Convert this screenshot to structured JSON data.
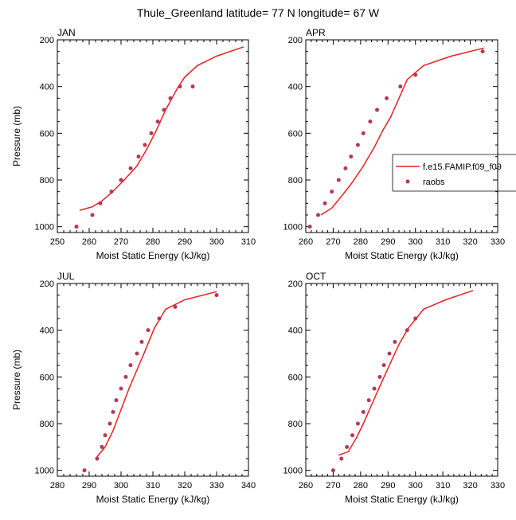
{
  "title": "Thule_Greenland  latitude= 77 N longitude= 67 W",
  "colors": {
    "model": "#e8201f",
    "obs": "#b5365f",
    "axis": "#000000"
  },
  "legend": {
    "placement": "right-middle",
    "model_label": "f.e15.FAMIP.f09_f09",
    "obs_label": "raobs"
  },
  "chart_data": [
    {
      "type": "line",
      "panel_label": "JAN",
      "xlabel": "Moist Static Energy (kJ/kg)",
      "ylabel": "Pressure (mb)",
      "xlim": [
        250,
        310
      ],
      "xticks": [
        250,
        260,
        270,
        280,
        290,
        300,
        310
      ],
      "ylim": [
        1025,
        200
      ],
      "yticks": [
        200,
        400,
        600,
        800,
        1000
      ],
      "series": [
        {
          "values": [
            [
              257.0,
              930
            ],
            [
              261.0,
              915
            ],
            [
              264.0,
              890
            ],
            [
              267.0,
              855
            ],
            [
              271.0,
              800
            ],
            [
              275.0,
              740
            ],
            [
              278.0,
              670
            ],
            [
              281.0,
              590
            ],
            [
              284.0,
              500
            ],
            [
              288.0,
              400
            ],
            [
              290.0,
              360
            ],
            [
              294.0,
              310
            ],
            [
              300.0,
              270
            ],
            [
              308.5,
              230
            ]
          ]
        },
        {
          "values": [
            [
              256.0,
              1000
            ],
            [
              261.0,
              950
            ],
            [
              263.5,
              900
            ],
            [
              267.0,
              850
            ],
            [
              270.0,
              800
            ],
            [
              273.0,
              750
            ],
            [
              275.5,
              700
            ],
            [
              277.5,
              650
            ],
            [
              279.5,
              600
            ],
            [
              281.5,
              550
            ],
            [
              283.5,
              500
            ],
            [
              285.5,
              450
            ],
            [
              288.5,
              400
            ],
            [
              292.5,
              400
            ]
          ]
        }
      ]
    },
    {
      "type": "line",
      "panel_label": "APR",
      "xlabel": "Moist Static Energy (kJ/kg)",
      "ylabel": "",
      "xlim": [
        260,
        330
      ],
      "xticks": [
        260,
        270,
        280,
        290,
        300,
        310,
        320,
        330
      ],
      "ylim": [
        1025,
        200
      ],
      "yticks": [
        200,
        400,
        600,
        800,
        1000
      ],
      "series": [
        {
          "values": [
            [
              265.5,
              950
            ],
            [
              269.5,
              920
            ],
            [
              273.0,
              870
            ],
            [
              277.0,
              810
            ],
            [
              281.0,
              740
            ],
            [
              285.0,
              660
            ],
            [
              288.0,
              590
            ],
            [
              291.0,
              530
            ],
            [
              294.0,
              450
            ],
            [
              297.0,
              370
            ],
            [
              303.0,
              310
            ],
            [
              313.0,
              270
            ],
            [
              325.0,
              235
            ]
          ]
        },
        {
          "values": [
            [
              261.5,
              1000
            ],
            [
              264.5,
              950
            ],
            [
              267.0,
              900
            ],
            [
              269.5,
              850
            ],
            [
              272.0,
              800
            ],
            [
              274.5,
              750
            ],
            [
              276.5,
              700
            ],
            [
              279.0,
              650
            ],
            [
              281.0,
              600
            ],
            [
              283.5,
              550
            ],
            [
              286.0,
              500
            ],
            [
              289.5,
              450
            ],
            [
              294.5,
              400
            ],
            [
              300.0,
              350
            ],
            [
              324.5,
              250
            ]
          ]
        }
      ]
    },
    {
      "type": "line",
      "panel_label": "JUL",
      "xlabel": "Moist Static Energy (kJ/kg)",
      "ylabel": "Pressure (mb)",
      "xlim": [
        280,
        340
      ],
      "xticks": [
        280,
        290,
        300,
        310,
        320,
        330,
        340
      ],
      "ylim": [
        1025,
        200
      ],
      "yticks": [
        200,
        400,
        600,
        800,
        1000
      ],
      "series": [
        {
          "values": [
            [
              292.0,
              950
            ],
            [
              295.0,
              900
            ],
            [
              297.5,
              830
            ],
            [
              300.0,
              740
            ],
            [
              302.5,
              650
            ],
            [
              305.0,
              570
            ],
            [
              307.5,
              490
            ],
            [
              310.5,
              390
            ],
            [
              314.0,
              310
            ],
            [
              320.0,
              270
            ],
            [
              330.0,
              235
            ]
          ]
        },
        {
          "values": [
            [
              288.5,
              1000
            ],
            [
              292.5,
              950
            ],
            [
              294.0,
              900
            ],
            [
              295.0,
              850
            ],
            [
              296.5,
              800
            ],
            [
              297.5,
              750
            ],
            [
              298.5,
              700
            ],
            [
              300.0,
              650
            ],
            [
              301.5,
              600
            ],
            [
              303.0,
              550
            ],
            [
              305.0,
              500
            ],
            [
              306.5,
              450
            ],
            [
              308.5,
              400
            ],
            [
              312.0,
              350
            ],
            [
              317.0,
              300
            ],
            [
              330.0,
              250
            ]
          ]
        }
      ]
    },
    {
      "type": "line",
      "panel_label": "OCT",
      "xlabel": "Moist Static Energy (kJ/kg)",
      "ylabel": "",
      "xlim": [
        260,
        330
      ],
      "xticks": [
        260,
        270,
        280,
        290,
        300,
        310,
        320,
        330
      ],
      "ylim": [
        1025,
        200
      ],
      "yticks": [
        200,
        400,
        600,
        800,
        1000
      ],
      "series": [
        {
          "values": [
            [
              272.0,
              935
            ],
            [
              275.5,
              920
            ],
            [
              278.5,
              860
            ],
            [
              281.0,
              800
            ],
            [
              284.0,
              720
            ],
            [
              287.0,
              640
            ],
            [
              290.5,
              550
            ],
            [
              294.0,
              460
            ],
            [
              297.5,
              390
            ],
            [
              303.0,
              310
            ],
            [
              311.0,
              270
            ],
            [
              321.0,
              230
            ]
          ]
        },
        {
          "values": [
            [
              270.0,
              1000
            ],
            [
              273.0,
              950
            ],
            [
              275.0,
              900
            ],
            [
              277.0,
              850
            ],
            [
              279.0,
              800
            ],
            [
              281.0,
              750
            ],
            [
              283.0,
              700
            ],
            [
              285.0,
              650
            ],
            [
              287.0,
              600
            ],
            [
              288.5,
              550
            ],
            [
              290.5,
              500
            ],
            [
              292.5,
              450
            ],
            [
              297.0,
              400
            ],
            [
              300.0,
              350
            ]
          ]
        }
      ]
    }
  ]
}
